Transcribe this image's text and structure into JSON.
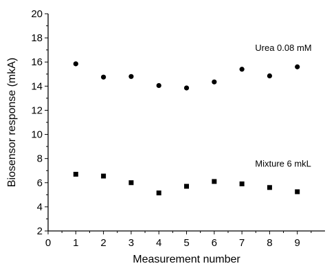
{
  "chart_data": {
    "type": "scatter",
    "xlabel": "Measurement  number",
    "ylabel": "Biosensor response (mkA)",
    "xlim": [
      0,
      10
    ],
    "ylim": [
      2,
      20
    ],
    "xticks": [
      0,
      1,
      2,
      3,
      4,
      5,
      6,
      7,
      8,
      9
    ],
    "yticks": [
      2,
      4,
      6,
      8,
      10,
      12,
      14,
      16,
      18,
      20
    ],
    "grid": false,
    "series": [
      {
        "name": "Urea 0.08 mM",
        "marker": "circle",
        "color": "#000000",
        "x": [
          1,
          2,
          3,
          4,
          5,
          6,
          7,
          8,
          9
        ],
        "y": [
          15.85,
          14.75,
          14.8,
          14.05,
          13.85,
          14.35,
          15.4,
          14.85,
          15.6
        ]
      },
      {
        "name": "Mixture 6 mkL",
        "marker": "square",
        "color": "#000000",
        "x": [
          1,
          2,
          3,
          4,
          5,
          6,
          7,
          8,
          9
        ],
        "y": [
          6.7,
          6.55,
          6.0,
          5.15,
          5.7,
          6.1,
          5.9,
          5.6,
          5.25
        ]
      }
    ],
    "annotations": [
      {
        "text": "Urea 0.08 mM",
        "x": 7.6,
        "y": 17.2
      },
      {
        "text": "Mixture 6 mkL",
        "x": 7.6,
        "y": 7.6
      }
    ]
  }
}
